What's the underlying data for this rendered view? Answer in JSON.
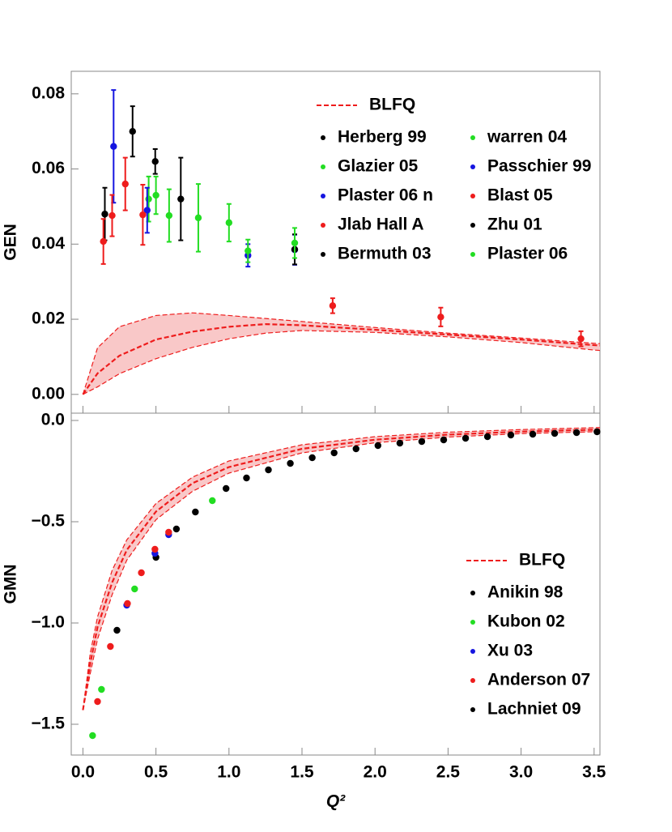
{
  "chart_data": [
    {
      "type": "scatter",
      "y_label": "GEN",
      "xlim": [
        -0.08,
        3.54
      ],
      "ylim": [
        -0.005,
        0.086
      ],
      "yticks": [
        {
          "value": 0,
          "label": "0.00"
        },
        {
          "value": 0.02,
          "label": "0.02"
        },
        {
          "value": 0.04,
          "label": "0.04"
        },
        {
          "value": 0.06,
          "label": "0.06"
        },
        {
          "value": 0.08,
          "label": "0.08"
        }
      ],
      "legend": "upper right",
      "legend_columns": 2,
      "series": [
        {
          "name": "BLFQ",
          "color": "#ee1c1c",
          "fill": "#f9c8c8",
          "x": [
            0,
            0.1,
            0.25,
            0.5,
            0.75,
            1,
            1.25,
            1.5,
            2,
            2.5,
            3,
            3.5,
            3.54
          ],
          "values": [
            0,
            0.0056,
            0.0103,
            0.0146,
            0.0167,
            0.018,
            0.0187,
            0.0184,
            0.0172,
            0.0159,
            0.0146,
            0.0131,
            0.013
          ],
          "lower": [
            0,
            0.002,
            0.0055,
            0.0095,
            0.0125,
            0.0148,
            0.0163,
            0.017,
            0.0165,
            0.0153,
            0.0138,
            0.0118,
            0.0117
          ],
          "upper": [
            0,
            0.0124,
            0.018,
            0.021,
            0.0217,
            0.021,
            0.0202,
            0.0194,
            0.0178,
            0.0163,
            0.015,
            0.0136,
            0.0135
          ]
        },
        {
          "name": "Herberg 99",
          "color": "#000000",
          "x": [
            0.15,
            0.34
          ],
          "values": [
            0.048,
            0.07
          ],
          "errors": [
            0.007,
            0.0067
          ]
        },
        {
          "name": "warren 04",
          "color": "#22dd22",
          "x": [
            0.5,
            1.0
          ],
          "values": [
            0.053,
            0.0457
          ],
          "errors": [
            0.005,
            0.005
          ]
        },
        {
          "name": "Glazier 05",
          "color": "#22dd22",
          "x": [
            0.45
          ],
          "values": [
            0.052
          ],
          "errors": [
            0.006
          ]
        },
        {
          "name": "Passchier 99",
          "color": "#1515e0",
          "x": [
            0.21
          ],
          "values": [
            0.066
          ],
          "errors": [
            0.015
          ]
        },
        {
          "name": "Plaster 06 n",
          "color": "#1515e0",
          "x": [
            0.44,
            1.13,
            1.45
          ],
          "values": [
            0.049,
            0.037,
            0.0385
          ],
          "errors": [
            0.006,
            0.003,
            0.004
          ]
        },
        {
          "name": "Blast 05",
          "color": "#ee1c1c",
          "x": [
            0.14,
            0.2,
            0.29,
            0.41
          ],
          "values": [
            0.0407,
            0.0476,
            0.056,
            0.0478
          ],
          "errors": [
            0.006,
            0.0055,
            0.007,
            0.008
          ]
        },
        {
          "name": "Jlab Hall A",
          "color": "#ee1c1c",
          "x": [
            1.71,
            2.45,
            3.41
          ],
          "values": [
            0.0236,
            0.0206,
            0.0148
          ],
          "errors": [
            0.002,
            0.0025,
            0.002
          ]
        },
        {
          "name": "Zhu 01",
          "color": "#000000",
          "x": [
            0.495
          ],
          "values": [
            0.062
          ],
          "errors": [
            0.0033
          ]
        },
        {
          "name": "Bermuth 03",
          "color": "#000000",
          "x": [
            0.67,
            1.45
          ],
          "values": [
            0.052,
            0.0386
          ],
          "errors": [
            0.011,
            0.004
          ]
        },
        {
          "name": "Plaster 06",
          "color": "#22dd22",
          "x": [
            0.59,
            0.79,
            1.13,
            1.45
          ],
          "values": [
            0.0476,
            0.047,
            0.0382,
            0.0403
          ],
          "errors": [
            0.007,
            0.009,
            0.003,
            0.004
          ]
        }
      ]
    },
    {
      "type": "scatter",
      "y_label": "GMN",
      "x_label": "Q²",
      "xlim": [
        -0.08,
        3.54
      ],
      "ylim": [
        -1.652,
        0.036
      ],
      "xticks": [
        {
          "value": 0,
          "label": "0.0"
        },
        0.5,
        {
          "value": 1,
          "label": "1.0"
        },
        1.5,
        {
          "value": 2,
          "label": "2.0"
        },
        2.5,
        {
          "value": 3,
          "label": "3.0"
        },
        3.5
      ],
      "yticks": [
        {
          "value": 0,
          "label": "0.0"
        },
        {
          "value": -0.5,
          "label": "−0.5"
        },
        {
          "value": -1,
          "label": "−1.0"
        },
        {
          "value": -1.5,
          "label": "−1.5"
        }
      ],
      "legend": "lower right",
      "legend_columns": 1,
      "series": [
        {
          "name": "BLFQ",
          "color": "#ee1c1c",
          "fill": "#f9c8c8",
          "x": [
            0,
            0.05,
            0.1,
            0.2,
            0.3,
            0.5,
            0.75,
            1,
            1.5,
            2,
            2.5,
            3,
            3.54
          ],
          "values": [
            -1.43,
            -1.2,
            -1.02,
            -0.8,
            -0.64,
            -0.45,
            -0.31,
            -0.23,
            -0.14,
            -0.095,
            -0.07,
            -0.055,
            -0.045
          ],
          "lower": [
            -1.43,
            -1.25,
            -1.08,
            -0.86,
            -0.69,
            -0.49,
            -0.35,
            -0.26,
            -0.16,
            -0.11,
            -0.082,
            -0.065,
            -0.055
          ],
          "upper": [
            -1.43,
            -1.15,
            -0.97,
            -0.74,
            -0.59,
            -0.41,
            -0.28,
            -0.2,
            -0.12,
            -0.08,
            -0.058,
            -0.045,
            -0.035
          ]
        },
        {
          "name": "Anikin 98",
          "color": "#000000",
          "x": [
            0.233,
            0.5,
            0.64
          ],
          "values": [
            -1.036,
            -0.676,
            -0.536
          ]
        },
        {
          "name": "Kubon 02",
          "color": "#22dd22",
          "x": [
            0.066,
            0.127,
            0.354,
            0.886
          ],
          "values": [
            -1.556,
            -1.328,
            -0.832,
            -0.396
          ]
        },
        {
          "name": "Xu 03",
          "color": "#1515e0",
          "x": [
            0.3,
            0.493,
            0.587
          ],
          "values": [
            -0.912,
            -0.656,
            -0.564
          ]
        },
        {
          "name": "Anderson 07",
          "color": "#ee1c1c",
          "x": [
            0.1,
            0.188,
            0.305,
            0.4,
            0.493,
            0.587
          ],
          "values": [
            -1.388,
            -1.116,
            -0.904,
            -0.752,
            -0.636,
            -0.552
          ]
        },
        {
          "name": "Lachniet 09",
          "color": "#000000",
          "x": [
            0.77,
            0.98,
            1.12,
            1.27,
            1.42,
            1.57,
            1.72,
            1.87,
            2.02,
            2.17,
            2.32,
            2.47,
            2.62,
            2.77,
            2.93,
            3.08,
            3.23,
            3.38,
            3.52
          ],
          "values": [
            -0.452,
            -0.336,
            -0.284,
            -0.244,
            -0.212,
            -0.184,
            -0.16,
            -0.14,
            -0.124,
            -0.112,
            -0.104,
            -0.096,
            -0.088,
            -0.08,
            -0.072,
            -0.068,
            -0.064,
            -0.06,
            -0.056
          ]
        }
      ]
    }
  ]
}
